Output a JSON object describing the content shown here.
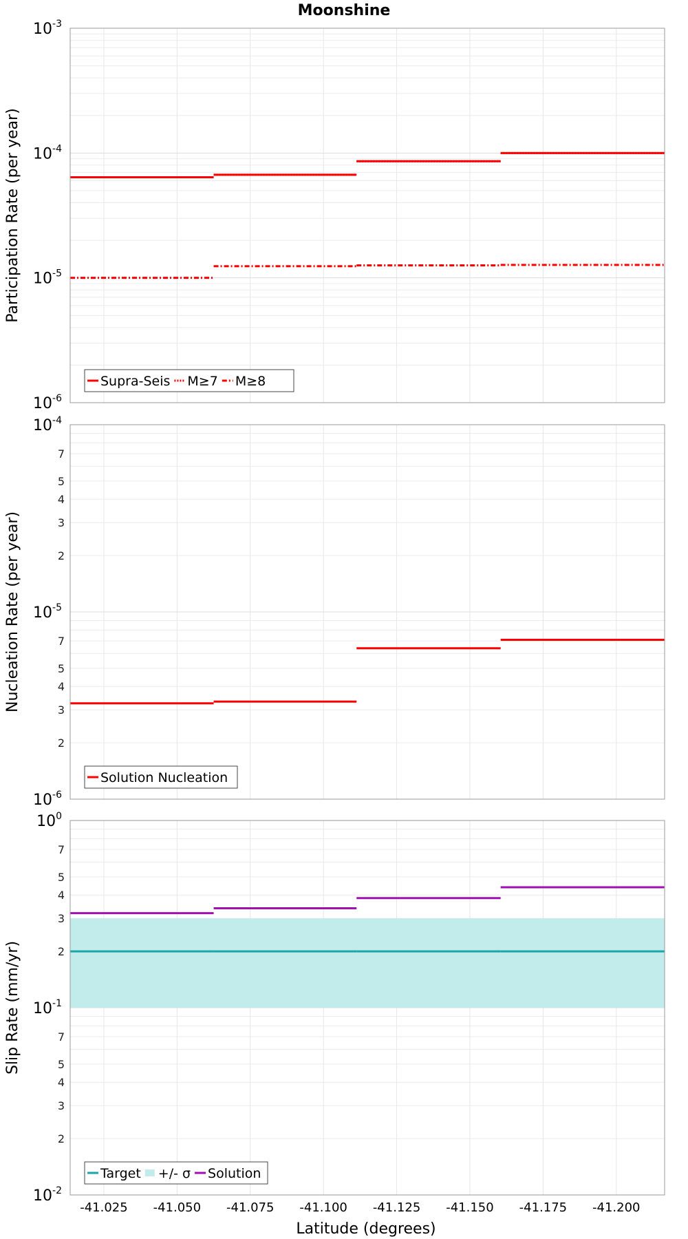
{
  "chart_data": {
    "title": "Moonshine",
    "xlabel": "Latitude (degrees)",
    "x_ticks": [
      "-41.025",
      "-41.050",
      "-41.075",
      "-41.100",
      "-41.125",
      "-41.150",
      "-41.175",
      "-41.200"
    ],
    "x_tick_values": [
      -41.025,
      -41.05,
      -41.075,
      -41.1,
      -41.125,
      -41.15,
      -41.175,
      -41.2
    ],
    "x_range": [
      -41.0135,
      -41.2165
    ],
    "x_direction": "reversed",
    "panels": [
      {
        "type": "line",
        "ylabel": "Participation Rate (per year)",
        "y_scale": "log",
        "ylim": [
          1e-06,
          0.001
        ],
        "y_major_ticks": [
          {
            "base": "10",
            "exp": "-6",
            "value": 1e-06
          },
          {
            "base": "10",
            "exp": "-5",
            "value": 1e-05
          },
          {
            "base": "10",
            "exp": "-4",
            "value": 0.0001
          },
          {
            "base": "10",
            "exp": "-3",
            "value": 0.001
          }
        ],
        "y_minor_labels": [],
        "grid": true,
        "legend_position": "bottom-left",
        "segments_x": [
          [
            -41.0135,
            -41.0625
          ],
          [
            -41.0625,
            -41.1113
          ],
          [
            -41.1113,
            -41.1605
          ],
          [
            -41.1605,
            -41.2165
          ]
        ],
        "series": [
          {
            "name": "Supra-Seis",
            "style": "solid",
            "color": "#ff0000",
            "values": [
              6.4e-05,
              6.7e-05,
              8.6e-05,
              0.0001
            ]
          },
          {
            "name": "M≥7",
            "style": "dotted",
            "color": "#ff0000",
            "values": [
              6.4e-05,
              6.7e-05,
              8.6e-05,
              0.0001
            ]
          },
          {
            "name": "M≥8",
            "style": "dashdot",
            "color": "#ff0000",
            "values": [
              1e-05,
              1.24e-05,
              1.26e-05,
              1.27e-05
            ]
          }
        ]
      },
      {
        "type": "line",
        "ylabel": "Nucleation Rate (per year)",
        "y_scale": "log",
        "ylim": [
          1e-06,
          0.0001
        ],
        "y_major_ticks": [
          {
            "base": "10",
            "exp": "-6",
            "value": 1e-06
          },
          {
            "base": "10",
            "exp": "-5",
            "value": 1e-05
          },
          {
            "base": "10",
            "exp": "-4",
            "value": 0.0001
          }
        ],
        "y_minor_labels": [
          "2",
          "3",
          "4",
          "5",
          "7"
        ],
        "grid": true,
        "legend_position": "bottom-left",
        "segments_x": [
          [
            -41.0135,
            -41.0625
          ],
          [
            -41.0625,
            -41.1113
          ],
          [
            -41.1113,
            -41.1605
          ],
          [
            -41.1605,
            -41.2165
          ]
        ],
        "series": [
          {
            "name": "Solution Nucleation",
            "style": "solid",
            "color": "#ff0000",
            "values": [
              3.25e-06,
              3.32e-06,
              6.4e-06,
              7.1e-06
            ]
          }
        ]
      },
      {
        "type": "line",
        "ylabel": "Slip Rate (mm/yr)",
        "y_scale": "log",
        "ylim": [
          0.01,
          1
        ],
        "y_major_ticks": [
          {
            "base": "10",
            "exp": "-2",
            "value": 0.01
          },
          {
            "base": "10",
            "exp": "-1",
            "value": 0.1
          },
          {
            "base": "10",
            "exp": "0",
            "value": 1
          }
        ],
        "y_minor_labels": [
          "2",
          "3",
          "4",
          "5",
          "7"
        ],
        "grid": true,
        "legend_position": "bottom-left",
        "segments_x": [
          [
            -41.0135,
            -41.0625
          ],
          [
            -41.0625,
            -41.1113
          ],
          [
            -41.1113,
            -41.1605
          ],
          [
            -41.1605,
            -41.2165
          ]
        ],
        "band": {
          "name": "+/- σ",
          "color": "#c2ecec",
          "low": 0.1,
          "high": 0.3
        },
        "series": [
          {
            "name": "Target",
            "style": "solid",
            "color": "#1aa6a6",
            "values": [
              0.2,
              0.2,
              0.2,
              0.2
            ]
          },
          {
            "name": "Solution",
            "style": "solid",
            "color": "#a010b0",
            "values": [
              0.32,
              0.34,
              0.385,
              0.44
            ]
          }
        ],
        "legend_order": [
          "Target",
          "+/- σ",
          "Solution"
        ]
      }
    ]
  }
}
